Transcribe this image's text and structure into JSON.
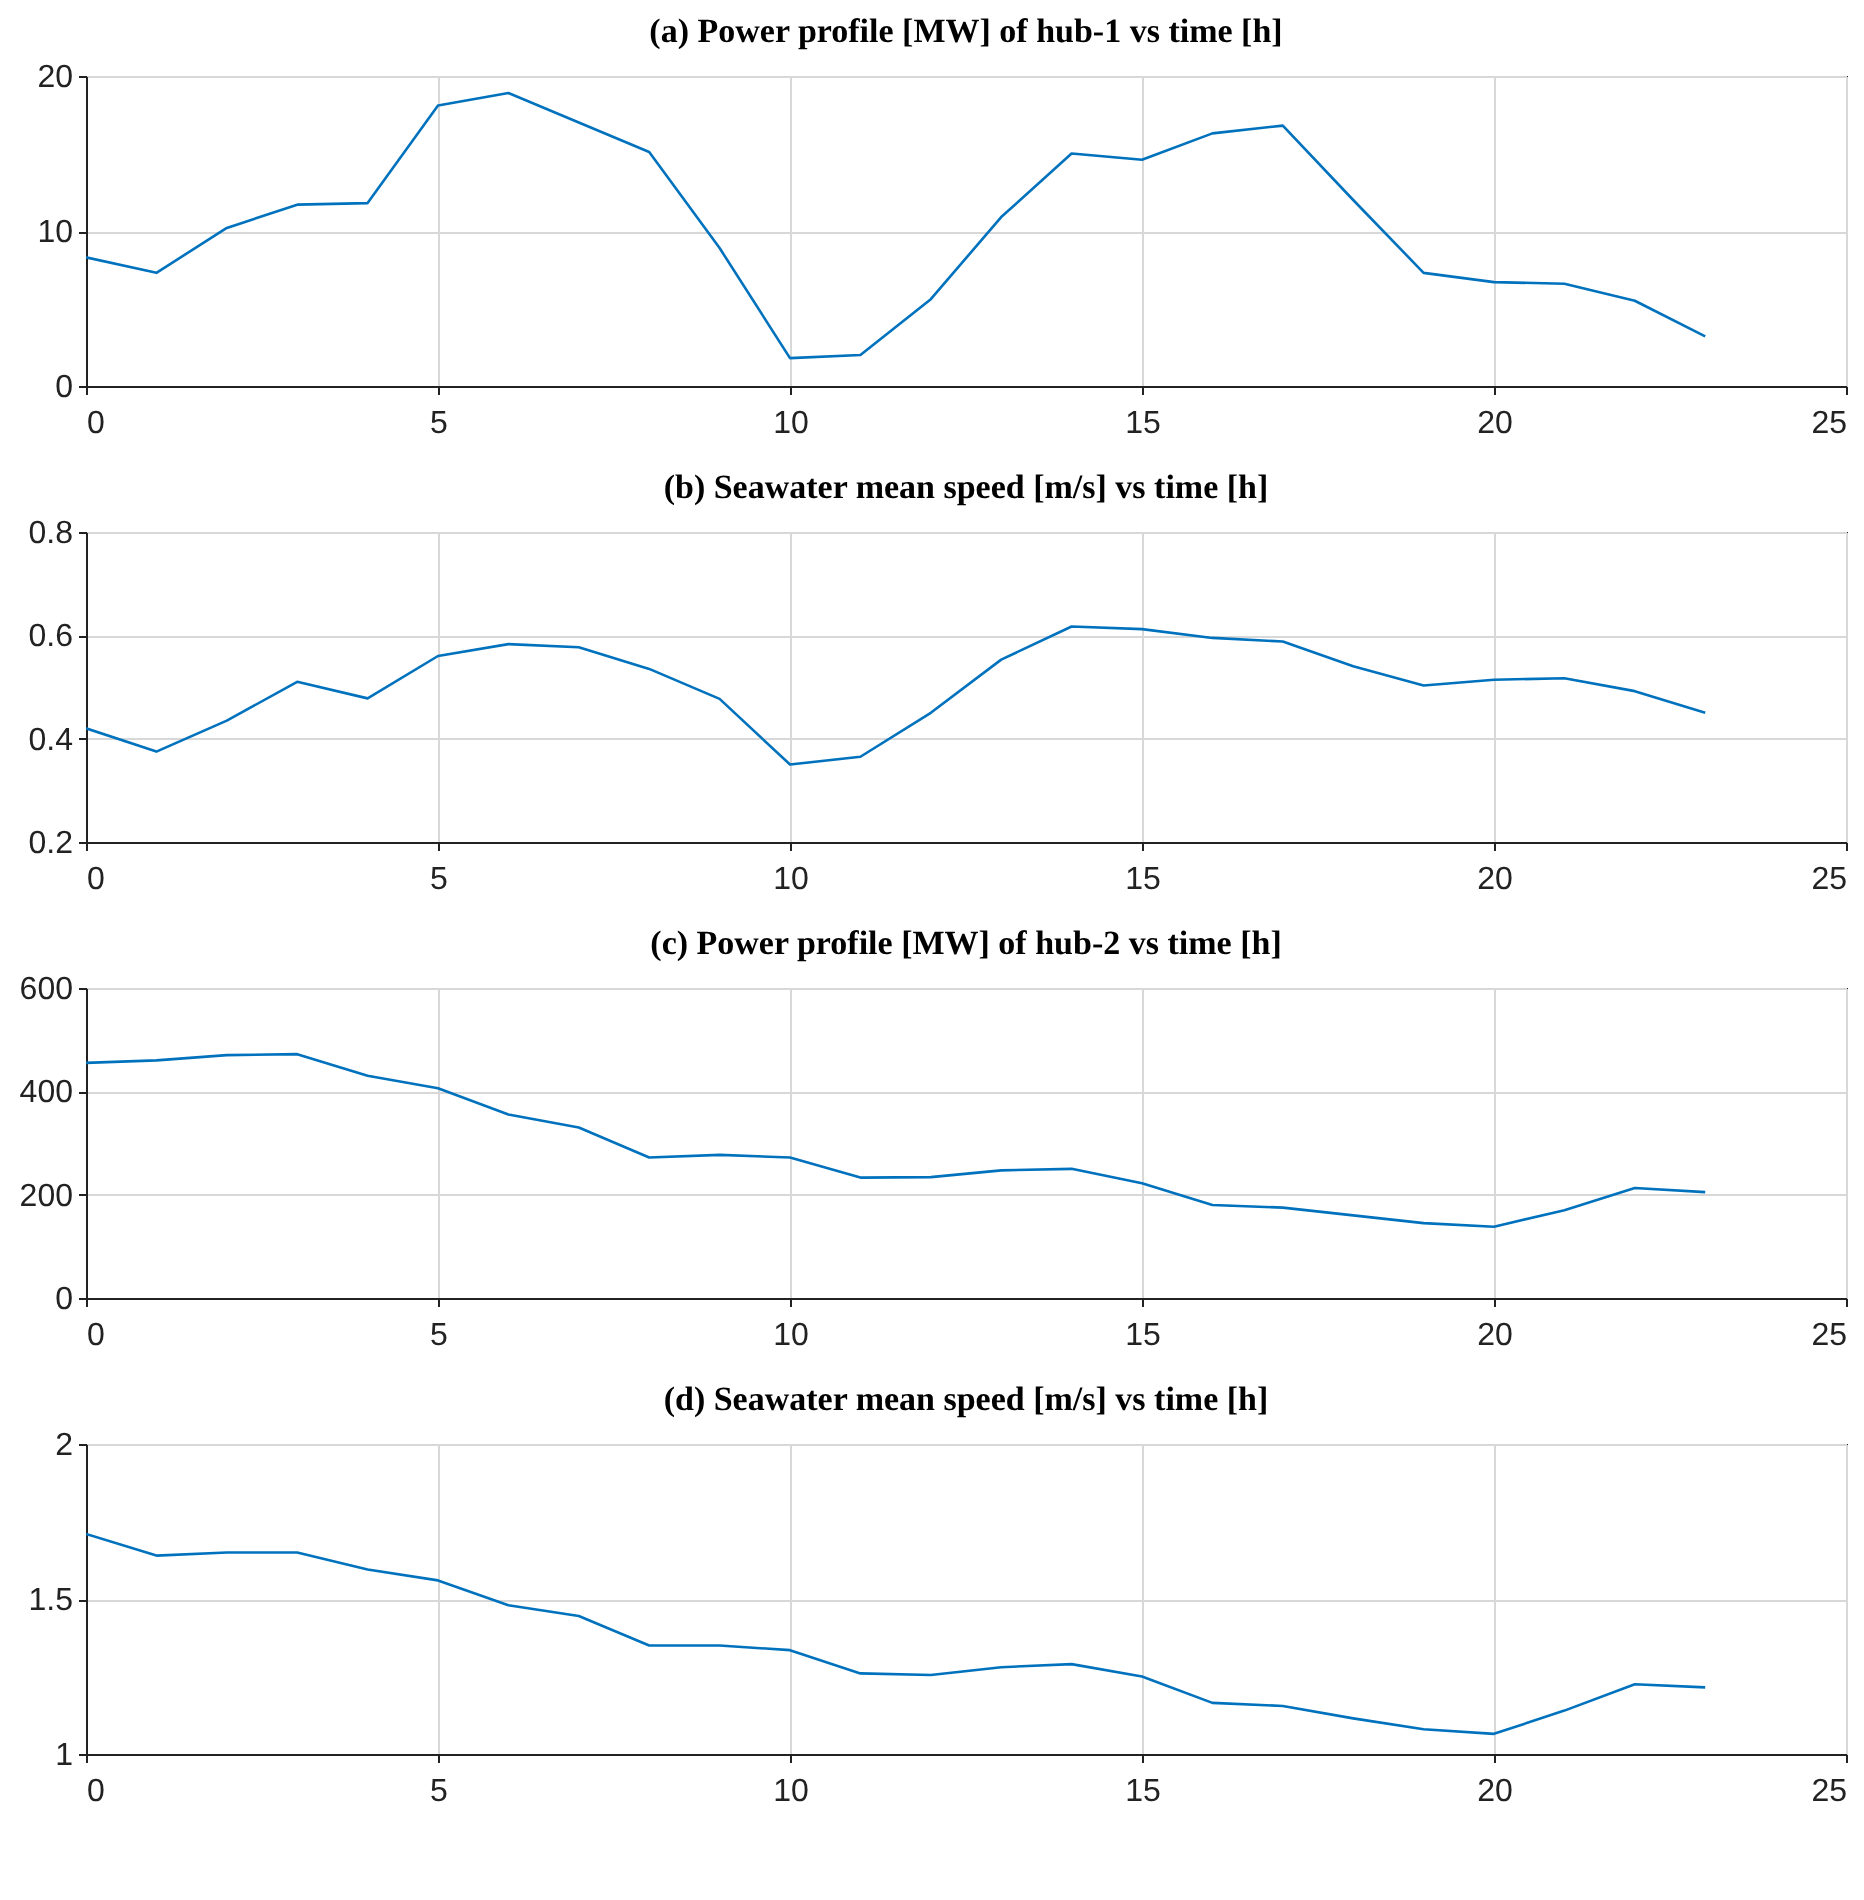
{
  "chart_data": [
    {
      "type": "line",
      "title": "(a) Power profile [MW] of hub-1 vs time [h]",
      "x": [
        0,
        1,
        2,
        3,
        4,
        5,
        6,
        7,
        8,
        9,
        10,
        11,
        12,
        13,
        14,
        15,
        16,
        17,
        18,
        19,
        20,
        21,
        22,
        23
      ],
      "series": [
        {
          "color": "#0072bd",
          "values": [
            8.3,
            7.3,
            10.2,
            11.7,
            11.8,
            18.1,
            18.9,
            17.0,
            15.1,
            8.9,
            1.8,
            2.0,
            5.6,
            10.9,
            15.0,
            14.6,
            16.3,
            16.8,
            12.0,
            7.3,
            6.7,
            6.6,
            5.5,
            3.2
          ]
        }
      ],
      "xlim": [
        0,
        25
      ],
      "xticks": [
        0,
        5,
        10,
        15,
        20,
        25
      ],
      "ylim": [
        0,
        20
      ],
      "yticks": [
        0,
        10,
        20
      ],
      "grid": true
    },
    {
      "type": "line",
      "title": "(b) Seawater mean speed [m/s] vs time [h]",
      "x": [
        0,
        1,
        2,
        3,
        4,
        5,
        6,
        7,
        8,
        9,
        10,
        11,
        12,
        13,
        14,
        15,
        16,
        17,
        18,
        19,
        20,
        21,
        22,
        23
      ],
      "series": [
        {
          "color": "#0072bd",
          "values": [
            0.42,
            0.375,
            0.435,
            0.51,
            0.478,
            0.56,
            0.583,
            0.577,
            0.535,
            0.477,
            0.35,
            0.365,
            0.45,
            0.553,
            0.617,
            0.612,
            0.595,
            0.588,
            0.54,
            0.503,
            0.514,
            0.517,
            0.492,
            0.45
          ]
        }
      ],
      "xlim": [
        0,
        25
      ],
      "xticks": [
        0,
        5,
        10,
        15,
        20,
        25
      ],
      "ylim": [
        0.2,
        0.8
      ],
      "yticks": [
        0.2,
        0.4,
        0.6,
        0.8
      ],
      "grid": true
    },
    {
      "type": "line",
      "title": "(c) Power profile [MW] of hub-2 vs time [h]",
      "x": [
        0,
        1,
        2,
        3,
        4,
        5,
        6,
        7,
        8,
        9,
        10,
        11,
        12,
        13,
        14,
        15,
        16,
        17,
        18,
        19,
        20,
        21,
        22,
        23
      ],
      "series": [
        {
          "color": "#0072bd",
          "values": [
            455,
            460,
            470,
            472,
            430,
            406,
            355,
            330,
            272,
            277,
            272,
            233,
            234,
            247,
            250,
            222,
            180,
            175,
            160,
            145,
            138,
            170,
            213,
            205
          ]
        }
      ],
      "xlim": [
        0,
        25
      ],
      "xticks": [
        0,
        5,
        10,
        15,
        20,
        25
      ],
      "ylim": [
        0,
        600
      ],
      "yticks": [
        0,
        200,
        400,
        600
      ],
      "grid": true
    },
    {
      "type": "line",
      "title": "(d) Seawater mean speed [m/s] vs time [h]",
      "x": [
        0,
        1,
        2,
        3,
        4,
        5,
        6,
        7,
        8,
        9,
        10,
        11,
        12,
        13,
        14,
        15,
        16,
        17,
        18,
        19,
        20,
        21,
        22,
        23
      ],
      "series": [
        {
          "color": "#0072bd",
          "values": [
            1.71,
            1.64,
            1.65,
            1.65,
            1.595,
            1.56,
            1.48,
            1.445,
            1.35,
            1.35,
            1.335,
            1.26,
            1.255,
            1.28,
            1.29,
            1.25,
            1.165,
            1.155,
            1.115,
            1.08,
            1.065,
            1.14,
            1.225,
            1.215
          ]
        }
      ],
      "xlim": [
        0,
        25
      ],
      "xticks": [
        0,
        5,
        10,
        15,
        20,
        25
      ],
      "ylim": [
        1,
        2
      ],
      "yticks": [
        1,
        1.5,
        2
      ],
      "grid": true
    }
  ]
}
